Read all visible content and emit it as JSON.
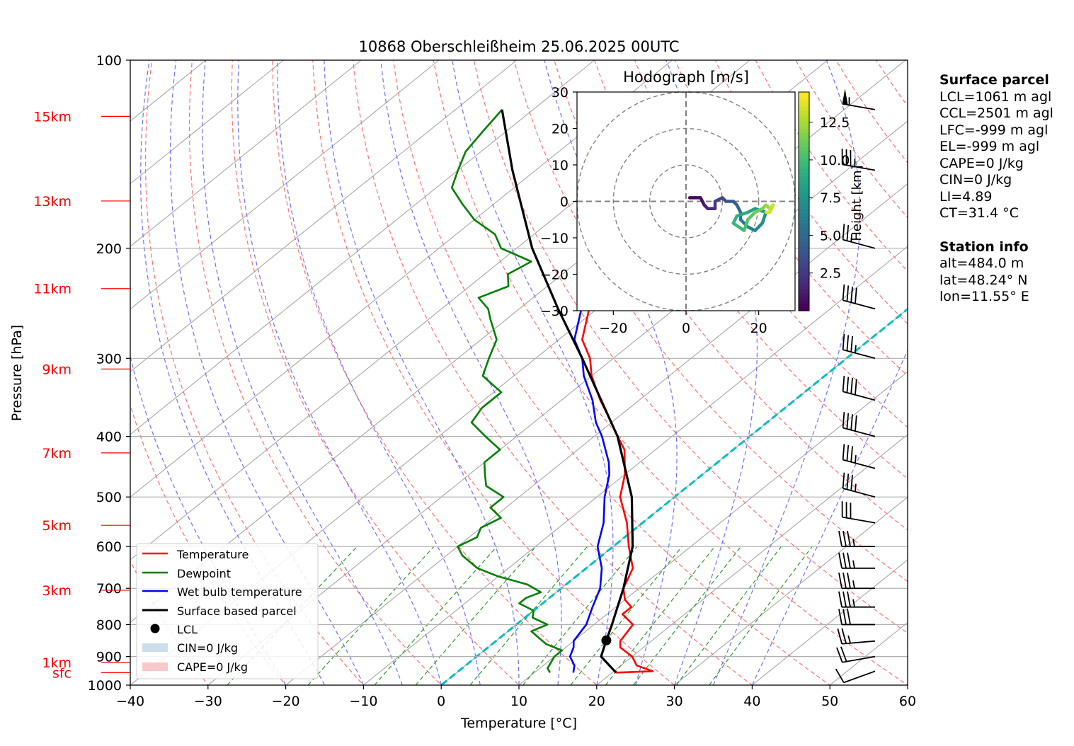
{
  "title": "10868 Oberschleißheim 25.06.2025 00UTC",
  "colors": {
    "temperature": "#ff0000",
    "dewpoint": "#008000",
    "wetbulb": "#0000ff",
    "parcel": "#000000",
    "isotherm_0": "#00bfbf",
    "dry_adiabat": "#ff7070",
    "moist_adiabat": "#7070ff",
    "mixing_ratio": "#2a9a2a",
    "height_labels": "#ff0000"
  },
  "chart_data": {
    "type": "line",
    "title": "10868 Oberschleißheim 25.06.2025 00UTC",
    "xlabel": "Temperature [°C]",
    "ylabel": "Pressure [hPa]",
    "xlim": [
      -40,
      60
    ],
    "ylim": [
      1000,
      100
    ],
    "yscale": "log",
    "x_ticks": [
      "−40",
      "−30",
      "−20",
      "−10",
      "0",
      "10",
      "20",
      "30",
      "40",
      "50",
      "60"
    ],
    "y_ticks": [
      "100",
      "200",
      "300",
      "400",
      "500",
      "600",
      "700",
      "800",
      "900",
      "1000"
    ],
    "grid": true,
    "skew": "skew-T log-p",
    "height_labels": [
      {
        "label": "sfc",
        "p": 955
      },
      {
        "label": "1km",
        "p": 920
      },
      {
        "label": "3km",
        "p": 705
      },
      {
        "label": "5km",
        "p": 555
      },
      {
        "label": "7km",
        "p": 425
      },
      {
        "label": "9km",
        "p": 312
      },
      {
        "label": "11km",
        "p": 232
      },
      {
        "label": "13km",
        "p": 168
      },
      {
        "label": "15km",
        "p": 123
      }
    ],
    "series": [
      {
        "name": "Temperature",
        "points": [
          [
            955,
            20.5
          ],
          [
            950,
            25
          ],
          [
            930,
            22
          ],
          [
            900,
            20
          ],
          [
            870,
            17
          ],
          [
            850,
            16
          ],
          [
            800,
            15
          ],
          [
            770,
            12
          ],
          [
            750,
            12
          ],
          [
            730,
            10
          ],
          [
            700,
            8
          ],
          [
            650,
            6
          ],
          [
            600,
            2
          ],
          [
            550,
            -2
          ],
          [
            500,
            -7
          ],
          [
            460,
            -10
          ],
          [
            420,
            -14
          ],
          [
            400,
            -17
          ],
          [
            380,
            -20
          ],
          [
            350,
            -25
          ],
          [
            320,
            -30
          ],
          [
            300,
            -33
          ],
          [
            280,
            -37
          ],
          [
            250,
            -41
          ],
          [
            230,
            -44
          ],
          [
            210,
            -47
          ],
          [
            190,
            -50
          ],
          [
            180,
            -51
          ],
          [
            170,
            -53
          ],
          [
            160,
            -55
          ],
          [
            150,
            -57
          ],
          [
            140,
            -59
          ],
          [
            132,
            -59
          ],
          [
            128,
            -57
          ],
          [
            122,
            -57
          ],
          [
            115,
            -57
          ]
        ]
      },
      {
        "name": "Dewpoint",
        "points": [
          [
            955,
            12
          ],
          [
            940,
            11
          ],
          [
            900,
            10
          ],
          [
            880,
            10
          ],
          [
            860,
            7
          ],
          [
            840,
            5
          ],
          [
            820,
            3
          ],
          [
            800,
            4
          ],
          [
            780,
            1
          ],
          [
            760,
            0
          ],
          [
            740,
            -3
          ],
          [
            725,
            -3
          ],
          [
            710,
            -2
          ],
          [
            690,
            -5
          ],
          [
            670,
            -10
          ],
          [
            650,
            -14
          ],
          [
            620,
            -18
          ],
          [
            600,
            -20
          ],
          [
            580,
            -19
          ],
          [
            560,
            -20
          ],
          [
            540,
            -19
          ],
          [
            520,
            -22
          ],
          [
            500,
            -22
          ],
          [
            480,
            -26
          ],
          [
            460,
            -28
          ],
          [
            440,
            -30
          ],
          [
            420,
            -30
          ],
          [
            400,
            -34
          ],
          [
            380,
            -38
          ],
          [
            360,
            -39
          ],
          [
            340,
            -39
          ],
          [
            320,
            -44
          ],
          [
            300,
            -46
          ],
          [
            280,
            -48
          ],
          [
            260,
            -52
          ],
          [
            250,
            -54
          ],
          [
            240,
            -57
          ],
          [
            230,
            -55
          ],
          [
            220,
            -57
          ],
          [
            210,
            -56
          ],
          [
            200,
            -62
          ],
          [
            190,
            -65
          ],
          [
            180,
            -70
          ],
          [
            170,
            -74
          ],
          [
            160,
            -78
          ],
          [
            150,
            -80
          ],
          [
            140,
            -82
          ],
          [
            130,
            -83
          ],
          [
            120,
            -84
          ]
        ]
      },
      {
        "name": "Wet bulb temperature",
        "points": [
          [
            955,
            15
          ],
          [
            930,
            14
          ],
          [
            900,
            12
          ],
          [
            870,
            11
          ],
          [
            850,
            10
          ],
          [
            800,
            9
          ],
          [
            750,
            7
          ],
          [
            700,
            5
          ],
          [
            650,
            2
          ],
          [
            600,
            -2
          ],
          [
            550,
            -5
          ],
          [
            500,
            -9
          ],
          [
            460,
            -12
          ],
          [
            440,
            -14
          ],
          [
            400,
            -19
          ],
          [
            380,
            -22
          ],
          [
            350,
            -26
          ],
          [
            320,
            -31
          ],
          [
            300,
            -34
          ],
          [
            280,
            -38
          ],
          [
            250,
            -42
          ],
          [
            230,
            -45
          ],
          [
            210,
            -48
          ],
          [
            190,
            -51
          ],
          [
            180,
            -52
          ],
          [
            170,
            -54
          ],
          [
            160,
            -56
          ],
          [
            150,
            -58
          ],
          [
            140,
            -60
          ],
          [
            132,
            -60
          ],
          [
            128,
            -58
          ],
          [
            122,
            -58
          ],
          [
            115,
            -58
          ]
        ]
      },
      {
        "name": "Surface based parcel",
        "points": [
          [
            955,
            20.5
          ],
          [
            900,
            16
          ],
          [
            848,
            14.1
          ],
          [
            800,
            12.3
          ],
          [
            700,
            8.0
          ],
          [
            600,
            2.5
          ],
          [
            500,
            -5.5
          ],
          [
            400,
            -17
          ],
          [
            300,
            -34
          ],
          [
            250,
            -45
          ],
          [
            200,
            -58
          ],
          [
            150,
            -73
          ],
          [
            120,
            -84
          ]
        ]
      }
    ],
    "lcl": {
      "label": "LCL",
      "p": 848,
      "t": 14.1
    },
    "legend": {
      "position": "lower-left",
      "entries": [
        "Temperature",
        "Dewpoint",
        "Wet bulb temperature",
        "Surface based parcel",
        "LCL",
        "CIN=0 J/kg",
        "CAPE=0 J/kg"
      ]
    },
    "wind_barbs": [
      {
        "p": 950,
        "speed_kt": 10,
        "dir_deg": 250
      },
      {
        "p": 900,
        "speed_kt": 20,
        "dir_deg": 260
      },
      {
        "p": 850,
        "speed_kt": 25,
        "dir_deg": 265
      },
      {
        "p": 800,
        "speed_kt": 30,
        "dir_deg": 270
      },
      {
        "p": 750,
        "speed_kt": 35,
        "dir_deg": 270
      },
      {
        "p": 700,
        "speed_kt": 35,
        "dir_deg": 270
      },
      {
        "p": 650,
        "speed_kt": 35,
        "dir_deg": 270
      },
      {
        "p": 600,
        "speed_kt": 35,
        "dir_deg": 270
      },
      {
        "p": 550,
        "speed_kt": 30,
        "dir_deg": 280
      },
      {
        "p": 500,
        "speed_kt": 35,
        "dir_deg": 285
      },
      {
        "p": 450,
        "speed_kt": 35,
        "dir_deg": 285
      },
      {
        "p": 400,
        "speed_kt": 40,
        "dir_deg": 285
      },
      {
        "p": 350,
        "speed_kt": 40,
        "dir_deg": 285
      },
      {
        "p": 300,
        "speed_kt": 35,
        "dir_deg": 285
      },
      {
        "p": 250,
        "speed_kt": 40,
        "dir_deg": 285
      },
      {
        "p": 200,
        "speed_kt": 25,
        "dir_deg": 285
      },
      {
        "p": 150,
        "speed_kt": 35,
        "dir_deg": 280
      },
      {
        "p": 120,
        "speed_kt": 55,
        "dir_deg": 280
      }
    ]
  },
  "hodograph": {
    "title": "Hodograph [m/s]",
    "xlim": [
      -30,
      30
    ],
    "ylim": [
      -30,
      30
    ],
    "x_ticks": [
      "−20",
      "0",
      "20"
    ],
    "y_ticks": [
      "30",
      "20",
      "10",
      "0",
      "−10",
      "−20",
      "−30"
    ],
    "rings": [
      10,
      20,
      30
    ],
    "colorbar_label": "Height [km]",
    "colorbar_ticks": [
      "2.5",
      "5.0",
      "7.5",
      "10.0",
      "12.5"
    ],
    "colorbar_range": [
      0,
      14.5
    ],
    "trace": [
      {
        "u": 1,
        "v": 1,
        "h": 0.3
      },
      {
        "u": 4,
        "v": 1,
        "h": 0.8
      },
      {
        "u": 5,
        "v": -1,
        "h": 1.3
      },
      {
        "u": 6,
        "v": -2,
        "h": 1.8
      },
      {
        "u": 8,
        "v": -2,
        "h": 2.3
      },
      {
        "u": 8,
        "v": 0,
        "h": 2.8
      },
      {
        "u": 10,
        "v": 1,
        "h": 3.3
      },
      {
        "u": 11,
        "v": 0,
        "h": 3.8
      },
      {
        "u": 13,
        "v": 0,
        "h": 4.3
      },
      {
        "u": 14,
        "v": -1,
        "h": 4.8
      },
      {
        "u": 15,
        "v": -3,
        "h": 5.3
      },
      {
        "u": 15,
        "v": -5,
        "h": 5.8
      },
      {
        "u": 17,
        "v": -7,
        "h": 6.3
      },
      {
        "u": 19,
        "v": -8,
        "h": 6.8
      },
      {
        "u": 21,
        "v": -6,
        "h": 7.3
      },
      {
        "u": 22,
        "v": -3,
        "h": 7.8
      },
      {
        "u": 19,
        "v": -2,
        "h": 8.3
      },
      {
        "u": 17,
        "v": -3,
        "h": 8.8
      },
      {
        "u": 14,
        "v": -4,
        "h": 9.3
      },
      {
        "u": 13,
        "v": -6,
        "h": 9.8
      },
      {
        "u": 16,
        "v": -8,
        "h": 10.3
      },
      {
        "u": 17,
        "v": -5,
        "h": 10.8
      },
      {
        "u": 19,
        "v": -3,
        "h": 11.3
      },
      {
        "u": 21,
        "v": -2,
        "h": 11.8
      },
      {
        "u": 22,
        "v": -1,
        "h": 12.3
      },
      {
        "u": 23,
        "v": -2,
        "h": 12.8
      },
      {
        "u": 24,
        "v": -1,
        "h": 13.3
      },
      {
        "u": 23,
        "v": -3,
        "h": 13.8
      },
      {
        "u": 22,
        "v": -3,
        "h": 14.3
      }
    ]
  },
  "side_panel": {
    "parcel_header": "Surface parcel",
    "parcel_lines": [
      "LCL=1061 m agl",
      "CCL=2501 m agl",
      "LFC=-999 m agl",
      "EL=-999 m agl",
      "CAPE=0 J/kg",
      "CIN=0 J/kg",
      "LI=4.89",
      "CT=31.4 °C"
    ],
    "station_header": "Station info",
    "station_lines": [
      "alt=484.0 m",
      "lat=48.24° N",
      "lon=11.55° E"
    ]
  }
}
